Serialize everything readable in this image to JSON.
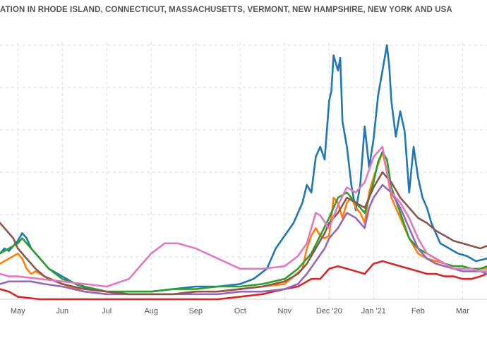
{
  "chart_data": {
    "type": "line",
    "title": "ATION IN RHODE ISLAND, CONNECTICUT, MASSACHUSETTS, VERMONT, NEW HAMPSHIRE, NEW YORK AND USA",
    "xlabel": "",
    "ylabel": "",
    "x_tick_labels": [
      "May",
      "Jun",
      "Jul",
      "Aug",
      "Sep",
      "Oct",
      "Nov",
      "Dec '20",
      "Jan '21",
      "Feb",
      "Mar"
    ],
    "x_domain": [
      -0.4,
      10.55
    ],
    "y_domain": [
      0,
      100
    ],
    "grid": true,
    "legend": "none",
    "series": [
      {
        "color": "#1f77b4",
        "x": [
          -0.4,
          -0.3,
          -0.2,
          -0.1,
          0,
          0.1,
          0.2,
          0.3,
          0.5,
          0.7,
          1,
          1.3,
          1.6,
          2,
          2.5,
          3,
          3.5,
          4,
          4.5,
          5,
          5.3,
          5.6,
          5.8,
          6,
          6.2,
          6.4,
          6.5,
          6.6,
          6.7,
          6.8,
          6.9,
          7,
          7.05,
          7.1,
          7.2,
          7.25,
          7.3,
          7.4,
          7.5,
          7.6,
          7.7,
          7.8,
          7.9,
          8,
          8.1,
          8.2,
          8.3,
          8.35,
          8.4,
          8.5,
          8.6,
          8.7,
          8.8,
          8.9,
          9,
          9.1,
          9.2,
          9.3,
          9.4,
          9.5,
          9.7,
          9.9,
          10.1,
          10.3,
          10.55
        ],
        "y": [
          18,
          20,
          19,
          21,
          23,
          26,
          24,
          20,
          16,
          12,
          9,
          6,
          4,
          3,
          3,
          3,
          4,
          5,
          5,
          6,
          8,
          12,
          20,
          25,
          30,
          38,
          45,
          42,
          56,
          60,
          55,
          78,
          82,
          96,
          90,
          95,
          70,
          60,
          45,
          35,
          45,
          68,
          52,
          63,
          80,
          90,
          100,
          92,
          78,
          64,
          74,
          66,
          42,
          60,
          48,
          40,
          36,
          30,
          26,
          22,
          20,
          18,
          17,
          15,
          16
        ]
      },
      {
        "color": "#ff7f0e",
        "x": [
          -0.4,
          -0.2,
          0,
          0.1,
          0.2,
          0.3,
          0.4,
          0.5,
          0.7,
          1,
          1.5,
          2,
          2.5,
          3,
          3.5,
          4,
          4.5,
          5,
          5.5,
          6,
          6.2,
          6.4,
          6.5,
          6.6,
          6.7,
          6.8,
          6.9,
          7,
          7.05,
          7.1,
          7.2,
          7.3,
          7.4,
          7.5,
          7.6,
          7.7,
          7.8,
          7.9,
          8,
          8.2,
          8.3,
          8.4,
          8.6,
          8.8,
          9,
          9.2,
          9.4,
          9.6,
          9.8,
          10,
          10.2,
          10.4,
          10.55
        ],
        "y": [
          14,
          16,
          18,
          16,
          12,
          10,
          11,
          10,
          8,
          6,
          3,
          2,
          2,
          2,
          2,
          3,
          3,
          4,
          5,
          6,
          9,
          12,
          20,
          25,
          28,
          25,
          24,
          25,
          32,
          40,
          38,
          32,
          38,
          40,
          36,
          34,
          30,
          42,
          48,
          58,
          50,
          40,
          32,
          24,
          18,
          16,
          15,
          14,
          13,
          13,
          12,
          12,
          12
        ]
      },
      {
        "color": "#2ca02c",
        "x": [
          -0.4,
          -0.2,
          0,
          0.1,
          0.2,
          0.3,
          0.5,
          0.7,
          1,
          1.5,
          2,
          2.5,
          3,
          3.5,
          4,
          4.5,
          5,
          5.5,
          6,
          6.3,
          6.6,
          6.8,
          7,
          7.2,
          7.4,
          7.6,
          7.8,
          8,
          8.1,
          8.2,
          8.3,
          8.4,
          8.6,
          8.8,
          9,
          9.2,
          9.4,
          9.6,
          9.8,
          10,
          10.2,
          10.4,
          10.55
        ],
        "y": [
          18,
          20,
          22,
          24,
          22,
          20,
          16,
          12,
          8,
          5,
          3,
          3,
          3,
          4,
          4,
          5,
          5,
          6,
          8,
          12,
          18,
          25,
          32,
          40,
          42,
          38,
          34,
          46,
          54,
          58,
          55,
          44,
          34,
          24,
          20,
          18,
          16,
          14,
          13,
          13,
          12,
          12,
          13
        ]
      },
      {
        "color": "#d62728",
        "x": [
          -0.4,
          -0.2,
          0,
          0.5,
          1,
          1.5,
          2,
          2.5,
          3,
          3.5,
          4,
          4.5,
          5,
          5.5,
          6,
          6.3,
          6.6,
          6.8,
          7,
          7.2,
          7.4,
          7.6,
          7.8,
          8,
          8.2,
          8.4,
          8.6,
          8.8,
          9,
          9.2,
          9.4,
          9.6,
          9.8,
          10,
          10.2,
          10.4,
          10.55
        ],
        "y": [
          4,
          3,
          1,
          0,
          0,
          0,
          0,
          0,
          0,
          0,
          0,
          0,
          1,
          2,
          4,
          5,
          8,
          8,
          12,
          13,
          12,
          11,
          10,
          14,
          15,
          14,
          13,
          12,
          11,
          10,
          10,
          9,
          9,
          8,
          8,
          9,
          10
        ]
      },
      {
        "color": "#9467bd",
        "x": [
          -0.4,
          -0.2,
          0,
          0.3,
          0.6,
          1,
          1.5,
          2,
          2.5,
          3,
          3.5,
          4,
          4.5,
          5,
          5.5,
          6,
          6.3,
          6.5,
          6.7,
          6.9,
          7,
          7.1,
          7.2,
          7.4,
          7.6,
          7.8,
          7.9,
          8,
          8.2,
          8.4,
          8.6,
          8.8,
          9,
          9.2,
          9.4,
          9.6,
          9.8,
          10,
          10.2,
          10.4,
          10.55
        ],
        "y": [
          6,
          7,
          7,
          7,
          6,
          5,
          3,
          2,
          2,
          2,
          2,
          2,
          2,
          3,
          3,
          4,
          6,
          10,
          15,
          20,
          24,
          26,
          28,
          34,
          32,
          28,
          36,
          40,
          45,
          42,
          36,
          28,
          20,
          16,
          14,
          13,
          12,
          11,
          11,
          11,
          10
        ]
      },
      {
        "color": "#8c564b",
        "x": [
          -0.4,
          -0.3,
          -0.2,
          -0.1,
          0,
          0.2,
          0.4,
          0.6,
          1,
          1.5,
          2,
          2.5,
          3,
          3.5,
          4,
          4.5,
          5,
          5.5,
          6,
          6.3,
          6.5,
          6.7,
          6.9,
          7,
          7.2,
          7.4,
          7.6,
          7.8,
          8,
          8.2,
          8.4,
          8.6,
          8.8,
          9,
          9.2,
          9.4,
          9.6,
          9.8,
          10,
          10.2,
          10.4,
          10.55
        ],
        "y": [
          30,
          28,
          26,
          24,
          20,
          16,
          12,
          9,
          6,
          4,
          3,
          2,
          2,
          2,
          3,
          3,
          4,
          5,
          7,
          10,
          14,
          20,
          26,
          30,
          34,
          40,
          38,
          36,
          44,
          50,
          46,
          40,
          36,
          32,
          30,
          27,
          25,
          23,
          22,
          21,
          20,
          21
        ]
      },
      {
        "color": "#e377c2",
        "x": [
          -0.4,
          -0.2,
          0,
          0.5,
          1,
          1.5,
          2,
          2.5,
          2.8,
          3,
          3.3,
          3.6,
          4,
          4.5,
          5,
          5.5,
          6,
          6.3,
          6.5,
          6.7,
          6.8,
          7,
          7.2,
          7.4,
          7.6,
          7.8,
          8,
          8.2,
          8.3,
          8.4,
          8.6,
          8.8,
          9,
          9.2,
          9.4,
          9.6,
          9.8,
          10,
          10.2,
          10.4,
          10.55
        ],
        "y": [
          10,
          9,
          9,
          8,
          7,
          6,
          5,
          8,
          14,
          18,
          22,
          22,
          20,
          16,
          12,
          12,
          13,
          17,
          22,
          34,
          33,
          28,
          37,
          44,
          42,
          46,
          56,
          60,
          50,
          42,
          38,
          32,
          24,
          18,
          16,
          14,
          12,
          12,
          12,
          11,
          11
        ]
      }
    ]
  }
}
